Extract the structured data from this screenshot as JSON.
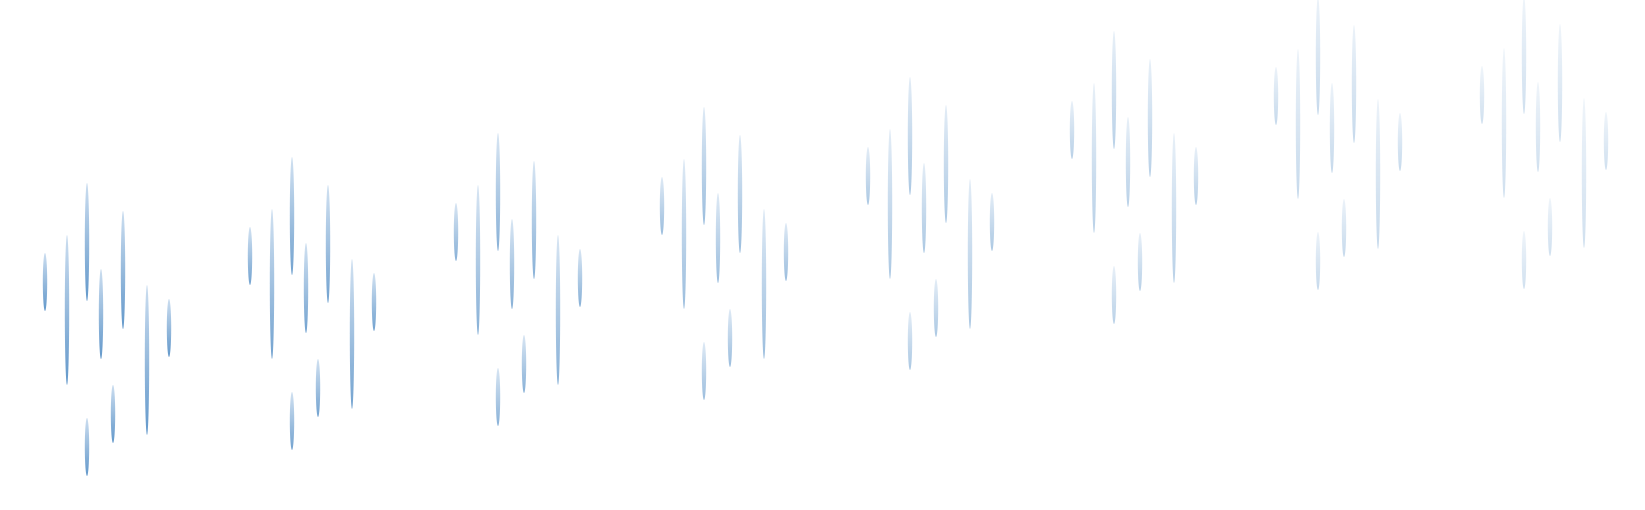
{
  "colors": {
    "background": "#ffffff",
    "drop_dark": "#5b93c8",
    "drop_light": "#dbe8f5"
  },
  "rain_groups": [
    {
      "opacity": 0.95
    },
    {
      "opacity": 0.85
    },
    {
      "opacity": 0.72
    },
    {
      "opacity": 0.6
    },
    {
      "opacity": 0.5
    },
    {
      "opacity": 0.42
    },
    {
      "opacity": 0.34
    },
    {
      "opacity": 0.28
    }
  ]
}
